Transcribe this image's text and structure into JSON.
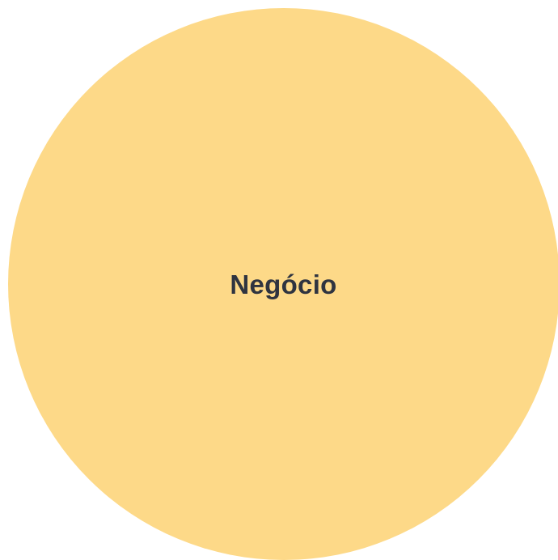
{
  "circle": {
    "label": "Negócio",
    "fill_color": "#FDD988",
    "text_color": "#2F3440"
  }
}
